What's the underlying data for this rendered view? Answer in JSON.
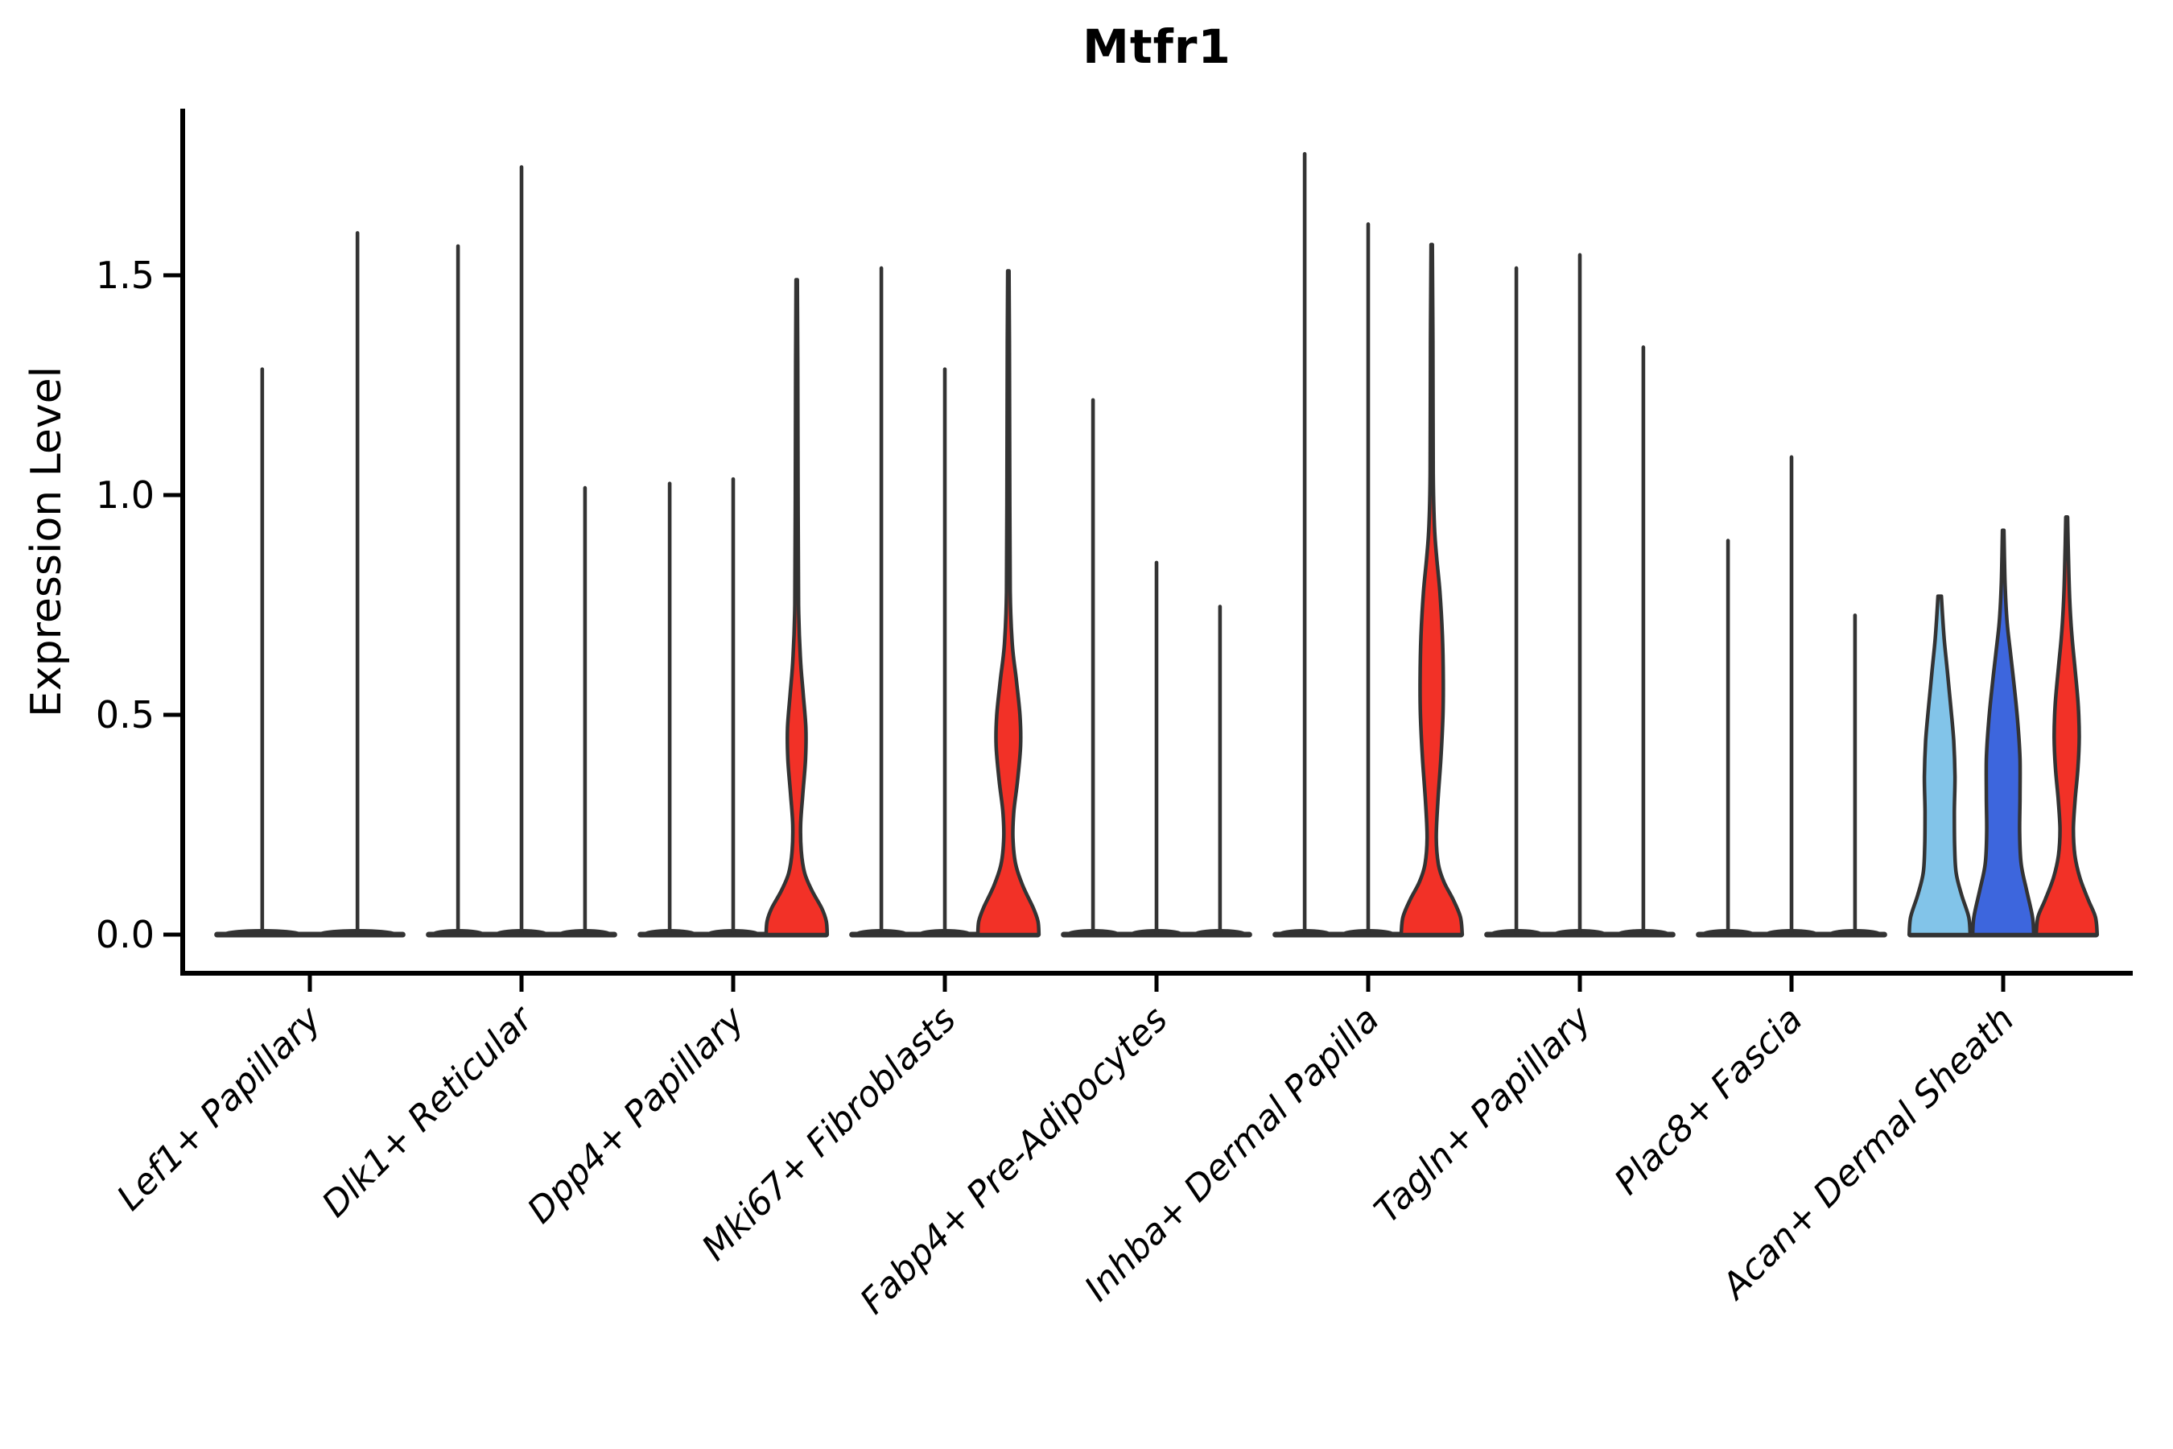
{
  "figure": {
    "background": "#ffffff"
  },
  "chart_data": {
    "type": "violin",
    "title": "Mtfr1",
    "ylabel": "Expression Level",
    "xlabel": "",
    "ylim": [
      0,
      1.88
    ],
    "grid": false,
    "legend": "none",
    "yticks": [
      {
        "value": 0.0,
        "label": "0.0"
      },
      {
        "value": 0.5,
        "label": "0.5"
      },
      {
        "value": 1.0,
        "label": "1.0"
      },
      {
        "value": 1.5,
        "label": "1.5"
      }
    ],
    "categories": [
      "Lef1+ Papillary",
      "Dlk1+ Reticular",
      "Dpp4+ Papillary",
      "Mki67+ Fibroblasts",
      "Fabp4+ Pre-Adipocytes",
      "Inhba+ Dermal Papilla",
      "Tagln+ Papillary",
      "Plac8+ Fascia",
      "Acan+ Dermal Sheath"
    ],
    "palette": {
      "red": "#f23127",
      "blue": "#3d66dd",
      "lightblue": "#82c4e9",
      "violin_line": "#333333",
      "axis": "#000000",
      "text": "#000000"
    },
    "groups": [
      {
        "category": "Lef1+ Papillary",
        "violins": [
          {
            "style": "spike",
            "max": 1.29
          },
          {
            "style": "spike",
            "max": 1.6
          }
        ]
      },
      {
        "category": "Dlk1+ Reticular",
        "violins": [
          {
            "style": "spike",
            "max": 1.57
          },
          {
            "style": "spike",
            "max": 1.75
          },
          {
            "style": "spike",
            "max": 1.02
          }
        ]
      },
      {
        "category": "Dpp4+ Papillary",
        "violins": [
          {
            "style": "spike",
            "max": 1.03
          },
          {
            "style": "spike",
            "max": 1.04
          },
          {
            "style": "filled",
            "max": 1.49,
            "color": "red",
            "profile": "dpp4_red"
          }
        ]
      },
      {
        "category": "Mki67+ Fibroblasts",
        "violins": [
          {
            "style": "spike",
            "max": 1.52
          },
          {
            "style": "spike",
            "max": 1.29
          },
          {
            "style": "filled",
            "max": 1.51,
            "color": "red",
            "profile": "mki67_red"
          }
        ]
      },
      {
        "category": "Fabp4+ Pre-Adipocytes",
        "violins": [
          {
            "style": "spike",
            "max": 1.22
          },
          {
            "style": "spike",
            "max": 0.85
          },
          {
            "style": "spike",
            "max": 0.75
          }
        ]
      },
      {
        "category": "Inhba+ Dermal Papilla",
        "violins": [
          {
            "style": "spike",
            "max": 1.78
          },
          {
            "style": "spike",
            "max": 1.62
          },
          {
            "style": "filled",
            "max": 1.57,
            "color": "red",
            "profile": "inhba_red"
          }
        ]
      },
      {
        "category": "Tagln+ Papillary",
        "violins": [
          {
            "style": "spike",
            "max": 1.52
          },
          {
            "style": "spike",
            "max": 1.55
          },
          {
            "style": "spike",
            "max": 1.34
          }
        ]
      },
      {
        "category": "Plac8+ Fascia",
        "violins": [
          {
            "style": "spike",
            "max": 0.9
          },
          {
            "style": "spike",
            "max": 1.09
          },
          {
            "style": "spike",
            "max": 0.73
          }
        ]
      },
      {
        "category": "Acan+ Dermal Sheath",
        "violins": [
          {
            "style": "filled",
            "max": 0.77,
            "color": "lightblue",
            "profile": "acan_lightblue"
          },
          {
            "style": "filled",
            "max": 0.92,
            "color": "blue",
            "profile": "acan_blue"
          },
          {
            "style": "filled",
            "max": 0.95,
            "color": "red",
            "profile": "acan_red"
          }
        ]
      }
    ],
    "profiles": {
      "dpp4_red": [
        [
          0,
          1
        ],
        [
          0.03,
          0.97
        ],
        [
          0.06,
          0.82
        ],
        [
          0.1,
          0.5
        ],
        [
          0.14,
          0.26
        ],
        [
          0.19,
          0.15
        ],
        [
          0.25,
          0.13
        ],
        [
          0.32,
          0.2
        ],
        [
          0.4,
          0.29
        ],
        [
          0.47,
          0.3
        ],
        [
          0.55,
          0.21
        ],
        [
          0.63,
          0.12
        ],
        [
          0.75,
          0.06
        ],
        [
          1.0,
          0.045
        ],
        [
          1.3,
          0.035
        ],
        [
          1.49,
          0.02
        ]
      ],
      "mki67_red": [
        [
          0,
          1
        ],
        [
          0.03,
          0.97
        ],
        [
          0.06,
          0.82
        ],
        [
          0.11,
          0.48
        ],
        [
          0.16,
          0.24
        ],
        [
          0.22,
          0.15
        ],
        [
          0.28,
          0.18
        ],
        [
          0.35,
          0.3
        ],
        [
          0.43,
          0.4
        ],
        [
          0.5,
          0.38
        ],
        [
          0.58,
          0.26
        ],
        [
          0.66,
          0.13
        ],
        [
          0.78,
          0.06
        ],
        [
          1.05,
          0.045
        ],
        [
          1.35,
          0.035
        ],
        [
          1.51,
          0.02
        ]
      ],
      "inhba_red": [
        [
          0,
          1
        ],
        [
          0.04,
          0.94
        ],
        [
          0.08,
          0.7
        ],
        [
          0.12,
          0.4
        ],
        [
          0.16,
          0.22
        ],
        [
          0.22,
          0.15
        ],
        [
          0.3,
          0.2
        ],
        [
          0.4,
          0.3
        ],
        [
          0.5,
          0.37
        ],
        [
          0.58,
          0.38
        ],
        [
          0.68,
          0.35
        ],
        [
          0.78,
          0.27
        ],
        [
          0.86,
          0.16
        ],
        [
          0.93,
          0.09
        ],
        [
          1.05,
          0.05
        ],
        [
          1.35,
          0.04
        ],
        [
          1.57,
          0.02
        ]
      ],
      "acan_lightblue": [
        [
          0,
          1
        ],
        [
          0.04,
          0.95
        ],
        [
          0.09,
          0.72
        ],
        [
          0.14,
          0.54
        ],
        [
          0.2,
          0.49
        ],
        [
          0.28,
          0.48
        ],
        [
          0.36,
          0.5
        ],
        [
          0.44,
          0.46
        ],
        [
          0.52,
          0.36
        ],
        [
          0.6,
          0.25
        ],
        [
          0.67,
          0.15
        ],
        [
          0.73,
          0.09
        ],
        [
          0.77,
          0.055
        ]
      ],
      "acan_blue": [
        [
          0,
          1
        ],
        [
          0.04,
          0.96
        ],
        [
          0.1,
          0.77
        ],
        [
          0.16,
          0.59
        ],
        [
          0.23,
          0.54
        ],
        [
          0.31,
          0.55
        ],
        [
          0.4,
          0.55
        ],
        [
          0.48,
          0.48
        ],
        [
          0.56,
          0.37
        ],
        [
          0.64,
          0.24
        ],
        [
          0.71,
          0.13
        ],
        [
          0.79,
          0.065
        ],
        [
          0.86,
          0.04
        ],
        [
          0.92,
          0.025
        ]
      ],
      "acan_red": [
        [
          0,
          1
        ],
        [
          0.04,
          0.94
        ],
        [
          0.08,
          0.7
        ],
        [
          0.13,
          0.43
        ],
        [
          0.18,
          0.27
        ],
        [
          0.24,
          0.22
        ],
        [
          0.31,
          0.28
        ],
        [
          0.38,
          0.37
        ],
        [
          0.45,
          0.41
        ],
        [
          0.52,
          0.38
        ],
        [
          0.6,
          0.28
        ],
        [
          0.68,
          0.17
        ],
        [
          0.76,
          0.1
        ],
        [
          0.85,
          0.06
        ],
        [
          0.95,
          0.03
        ]
      ]
    }
  }
}
